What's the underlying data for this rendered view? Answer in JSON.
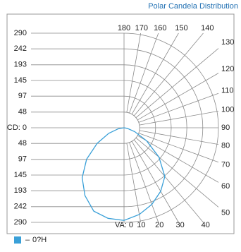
{
  "chart_data": {
    "type": "polar",
    "title": "Polar Candela Distribution",
    "ylim": [
      0,
      290
    ],
    "yticks": [
      290,
      242,
      193,
      145,
      97,
      48,
      {
        "value": 0,
        "label": "CD: 0"
      },
      48,
      97,
      145,
      193,
      242,
      290
    ],
    "angle_ticks": [
      {
        "value": 0,
        "label": "VA: 0"
      },
      10,
      20,
      30,
      40,
      50,
      60,
      70,
      80,
      90,
      100,
      110,
      120,
      130,
      140,
      150,
      160,
      170,
      180
    ],
    "angles": [
      0,
      10,
      20,
      30,
      40,
      50,
      60,
      70,
      80,
      90
    ],
    "series": [
      {
        "name": "0?H",
        "color": "#3aa0d8",
        "values": [
          284,
          270,
          250,
          225,
          195,
          140,
          80,
          35,
          10,
          0
        ],
        "values_left": [
          284,
          282,
          272,
          240,
          200,
          150,
          95,
          50,
          18,
          0
        ]
      }
    ]
  }
}
